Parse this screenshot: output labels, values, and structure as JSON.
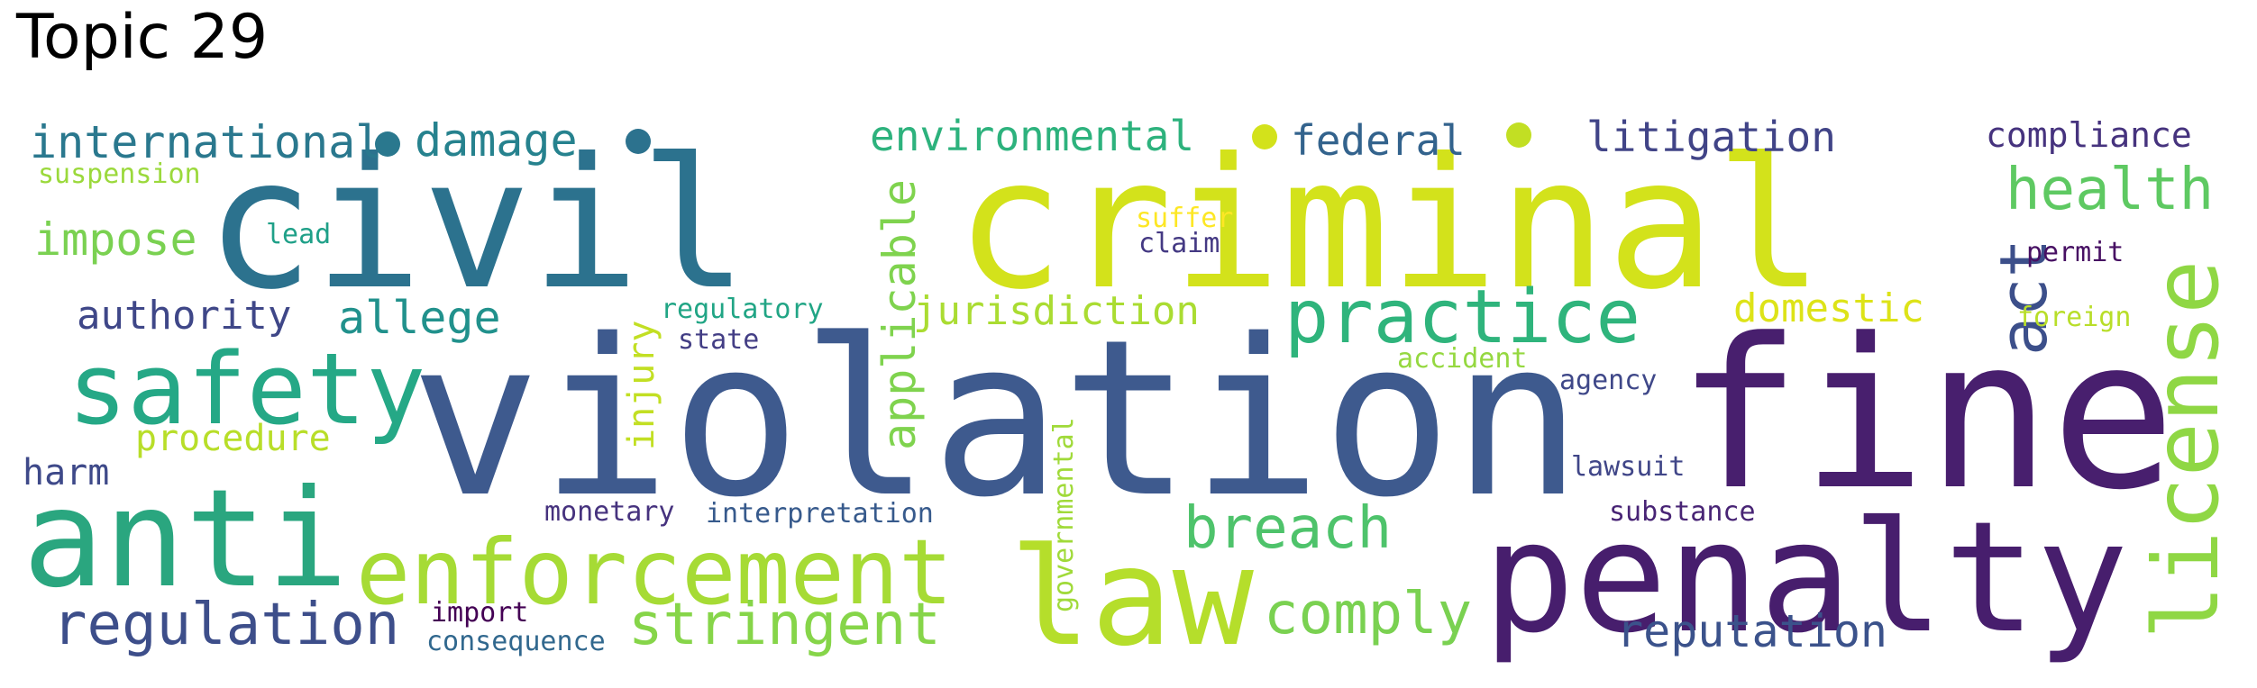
{
  "title": "Topic 29",
  "words": [
    {
      "text": "violation",
      "color": "#3e5a8e"
    },
    {
      "text": "fine",
      "color": "#481f6e"
    },
    {
      "text": "criminal",
      "color": "#d3e21b"
    },
    {
      "text": "civil",
      "color": "#2c728e"
    },
    {
      "text": "penalty",
      "color": "#471e6d"
    },
    {
      "text": "law",
      "color": "#b5de2b"
    },
    {
      "text": "anti",
      "color": "#2aa67f"
    },
    {
      "text": "enforcement",
      "color": "#a6db35"
    },
    {
      "text": "safety",
      "color": "#25a886"
    },
    {
      "text": "license",
      "color": "#8fd744"
    },
    {
      "text": "practice",
      "color": "#2fb47c"
    },
    {
      "text": "regulation",
      "color": "#3d4e8a"
    },
    {
      "text": "stringent",
      "color": "#86d549"
    },
    {
      "text": "breach",
      "color": "#4ec36b"
    },
    {
      "text": "comply",
      "color": "#7ad151"
    },
    {
      "text": "act",
      "color": "#3c4f8a"
    },
    {
      "text": "health",
      "color": "#5ec962"
    },
    {
      "text": "reputation",
      "color": "#3b528b"
    },
    {
      "text": "international",
      "color": "#2a788e"
    },
    {
      "text": "damage",
      "color": "#26828e"
    },
    {
      "text": "environmental",
      "color": "#2db27d"
    },
    {
      "text": "federal",
      "color": "#33638d"
    },
    {
      "text": "litigation",
      "color": "#414487"
    },
    {
      "text": "compliance",
      "color": "#46337e"
    },
    {
      "text": "impose",
      "color": "#7ad151"
    },
    {
      "text": "authority",
      "color": "#3f4788"
    },
    {
      "text": "allege",
      "color": "#21918c"
    },
    {
      "text": "applicable",
      "color": "#7fd34e"
    },
    {
      "text": "jurisdiction",
      "color": "#aadc32"
    },
    {
      "text": "domestic",
      "color": "#dde318"
    },
    {
      "text": "injury",
      "color": "#c2df23"
    },
    {
      "text": "procedure",
      "color": "#b8de29"
    },
    {
      "text": "harm",
      "color": "#3e4989"
    },
    {
      "text": "suspension",
      "color": "#9bd93c"
    },
    {
      "text": "lead",
      "color": "#1fa088"
    },
    {
      "text": "suffer",
      "color": "#fde725"
    },
    {
      "text": "claim",
      "color": "#443983"
    },
    {
      "text": "regulatory",
      "color": "#21a585"
    },
    {
      "text": "state",
      "color": "#433e85"
    },
    {
      "text": "accident",
      "color": "#95d840"
    },
    {
      "text": "agency",
      "color": "#3f4889"
    },
    {
      "text": "lawsuit",
      "color": "#404688"
    },
    {
      "text": "substance",
      "color": "#482475"
    },
    {
      "text": "permit",
      "color": "#471063"
    },
    {
      "text": "foreign",
      "color": "#b8de29"
    },
    {
      "text": "governmental",
      "color": "#a0da39"
    },
    {
      "text": "monetary",
      "color": "#46327e"
    },
    {
      "text": "interpretation",
      "color": "#375a8c"
    },
    {
      "text": "import",
      "color": "#440154"
    },
    {
      "text": "consequence",
      "color": "#31688e"
    }
  ],
  "dots": [
    {
      "color": "#2a788e"
    },
    {
      "color": "#2c728e"
    },
    {
      "color": "#d3e21b"
    },
    {
      "color": "#c2df23"
    }
  ]
}
